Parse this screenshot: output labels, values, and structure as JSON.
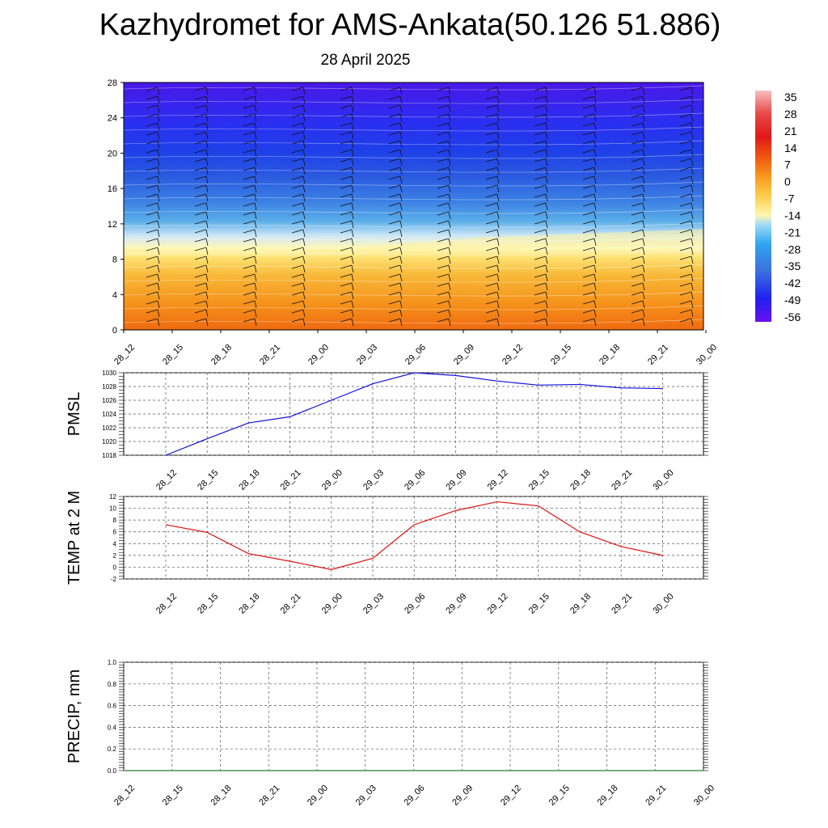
{
  "header": {
    "title": "Kazhydromet for AMS-Ankata(50.126 51.886)",
    "subtitle": "28 April 2025"
  },
  "colors": {
    "pmsl_line": "#1010e0",
    "temp_line": "#e01010",
    "precip_line": "#2a7a2a",
    "grid": "#555555"
  },
  "chart_data": [
    {
      "type": "heatmap",
      "name": "cross-section",
      "x_ticks": [
        "28_12",
        "28_15",
        "28_18",
        "28_21",
        "29_00",
        "29_03",
        "29_06",
        "29_09",
        "29_12",
        "29_15",
        "29_18",
        "29_21",
        "30_00"
      ],
      "y_ticks": [
        "0",
        "4",
        "8",
        "12",
        "16",
        "20",
        "24",
        "28"
      ],
      "ylim": [
        0,
        28
      ],
      "colorbar": {
        "labels": [
          "35",
          "28",
          "21",
          "14",
          "7",
          "0",
          "-7",
          "-14",
          "-21",
          "-28",
          "-35",
          "-42",
          "-49",
          "-56"
        ]
      },
      "description_shading": "warm orange near surface, yellow to about level 9-11, light blue near 12-14, blue to violet above",
      "wind_barbs": true
    },
    {
      "type": "line",
      "ylabel": "PMSL",
      "x": [
        "28_12",
        "28_15",
        "28_18",
        "28_21",
        "29_00",
        "29_03",
        "29_06",
        "29_09",
        "29_12",
        "29_15",
        "29_18",
        "29_21",
        "30_00"
      ],
      "values": [
        1018.0,
        1020.4,
        1022.7,
        1023.6,
        1026.0,
        1028.4,
        1030.0,
        1029.6,
        1028.8,
        1028.2,
        1028.3,
        1027.8,
        1027.7
      ],
      "yticks": [
        "1018",
        "1020",
        "1022",
        "1024",
        "1026",
        "1028",
        "1030"
      ],
      "ylim": [
        1018,
        1030
      ],
      "grid": true
    },
    {
      "type": "line",
      "ylabel": "TEMP at 2 M",
      "x": [
        "28_12",
        "28_15",
        "28_18",
        "28_21",
        "29_00",
        "29_03",
        "29_06",
        "29_09",
        "29_12",
        "29_15",
        "29_18",
        "29_21",
        "30_00"
      ],
      "values": [
        7.2,
        5.9,
        2.3,
        1.0,
        -0.4,
        1.5,
        7.2,
        9.6,
        11.1,
        10.4,
        6.0,
        3.5,
        2.0
      ],
      "yticks": [
        "-2",
        "0",
        "2",
        "4",
        "6",
        "8",
        "10",
        "12"
      ],
      "ylim": [
        -2,
        12
      ],
      "grid": true
    },
    {
      "type": "line",
      "ylabel": "PRECIP, mm",
      "x": [
        "28_12",
        "28_15",
        "28_18",
        "28_21",
        "29_00",
        "29_03",
        "29_06",
        "29_09",
        "29_12",
        "29_15",
        "29_18",
        "29_21",
        "30_00"
      ],
      "values": [
        0,
        0,
        0,
        0,
        0,
        0,
        0,
        0,
        0,
        0,
        0,
        0,
        0
      ],
      "yticks": [
        "0.0",
        "0.2",
        "0.4",
        "0.6",
        "0.8",
        "1.0"
      ],
      "ylim": [
        0,
        1.0
      ],
      "grid": true
    }
  ]
}
